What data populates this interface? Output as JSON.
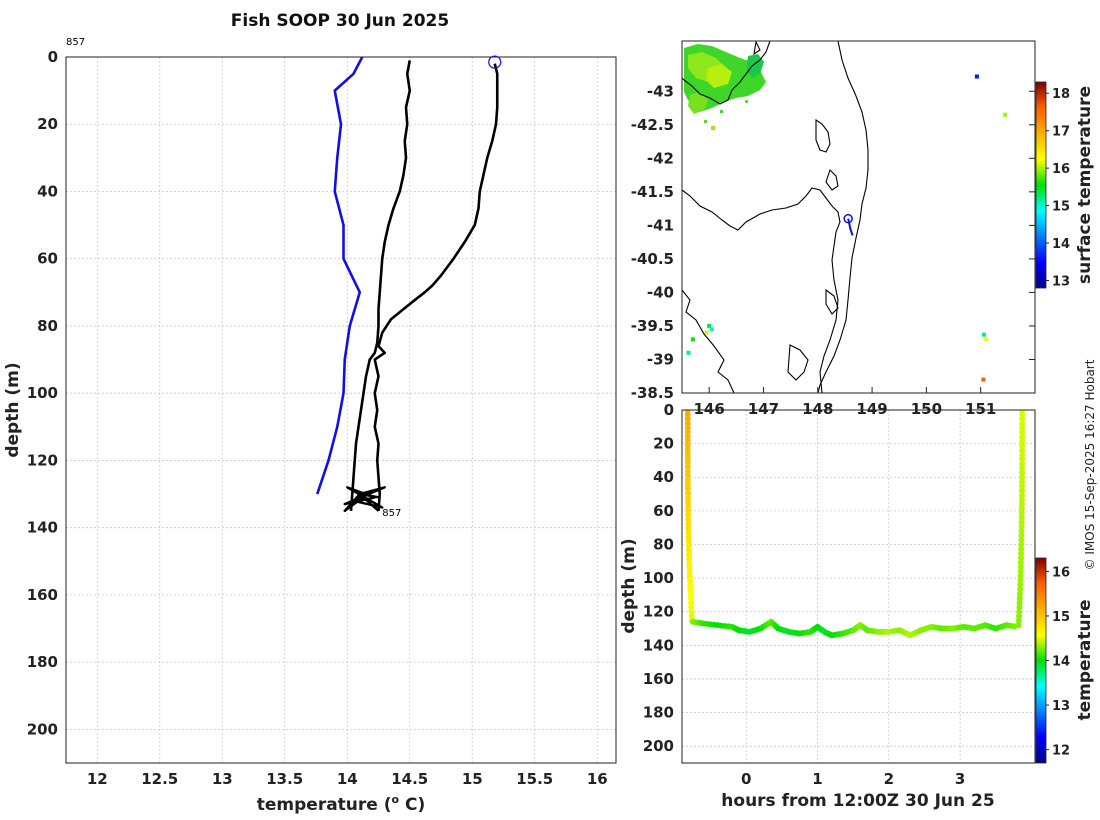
{
  "page": {
    "credit": "© IMOS 15-Sep-2025 16:27 Hobart"
  },
  "colors": {
    "climatology": "#1010e0",
    "profile": "#000000",
    "coast": "#000000",
    "marker": "#1010e0"
  },
  "chart_data": [
    {
      "id": "profile",
      "type": "line",
      "title": "Fish SOOP 30 Jun 2025",
      "xlabel": "temperature (",
      "xlabel_sup": "o",
      "xlabel_tail": " C)",
      "ylabel": "depth (m)",
      "xlim": [
        11.75,
        16.15
      ],
      "ylim": [
        0,
        210
      ],
      "xticks": [
        12,
        12.5,
        13,
        13.5,
        14,
        14.5,
        15,
        15.5,
        16
      ],
      "xtick_labels": [
        "12",
        "12.5",
        "13",
        "13.5",
        "14",
        "14.5",
        "15",
        "15.5",
        "16"
      ],
      "yticks": [
        0,
        20,
        40,
        60,
        80,
        100,
        120,
        140,
        160,
        180,
        200
      ],
      "ytick_labels": [
        "0",
        "20",
        "40",
        "60",
        "80",
        "100",
        "120",
        "140",
        "160",
        "180",
        "200"
      ],
      "annotation_top": "857",
      "annotation_bottom": "857",
      "start_marker": {
        "temperature": 15.18,
        "depth": 1.5
      },
      "series": [
        {
          "name": "climatology",
          "color": "#1010e0",
          "points": [
            [
              14.12,
              0
            ],
            [
              14.05,
              5
            ],
            [
              13.9,
              10
            ],
            [
              13.95,
              20
            ],
            [
              13.92,
              30
            ],
            [
              13.9,
              40
            ],
            [
              13.97,
              50
            ],
            [
              13.97,
              60
            ],
            [
              14.1,
              70
            ],
            [
              14.02,
              80
            ],
            [
              13.98,
              90
            ],
            [
              13.97,
              100
            ],
            [
              13.92,
              110
            ],
            [
              13.85,
              120
            ],
            [
              13.76,
              130
            ]
          ]
        },
        {
          "name": "profile-a",
          "color": "#000000",
          "points": [
            [
              15.18,
              2
            ],
            [
              15.2,
              5
            ],
            [
              15.2,
              10
            ],
            [
              15.2,
              15
            ],
            [
              15.19,
              20
            ],
            [
              15.16,
              25
            ],
            [
              15.12,
              30
            ],
            [
              15.09,
              35
            ],
            [
              15.06,
              40
            ],
            [
              15.05,
              45
            ],
            [
              15.02,
              50
            ],
            [
              14.94,
              55
            ],
            [
              14.85,
              60
            ],
            [
              14.75,
              65
            ],
            [
              14.68,
              68
            ],
            [
              14.62,
              70
            ],
            [
              14.55,
              72
            ],
            [
              14.45,
              75
            ],
            [
              14.35,
              78
            ],
            [
              14.28,
              82
            ],
            [
              14.25,
              86
            ],
            [
              14.3,
              88
            ],
            [
              14.22,
              90
            ],
            [
              14.25,
              95
            ],
            [
              14.22,
              100
            ],
            [
              14.24,
              105
            ],
            [
              14.22,
              110
            ],
            [
              14.25,
              115
            ],
            [
              14.24,
              120
            ],
            [
              14.25,
              125
            ],
            [
              14.26,
              130
            ],
            [
              14.25,
              135
            ]
          ]
        },
        {
          "name": "profile-b",
          "color": "#000000",
          "points": [
            [
              14.5,
              1
            ],
            [
              14.48,
              5
            ],
            [
              14.5,
              10
            ],
            [
              14.47,
              15
            ],
            [
              14.48,
              20
            ],
            [
              14.46,
              25
            ],
            [
              14.47,
              30
            ],
            [
              14.45,
              35
            ],
            [
              14.42,
              40
            ],
            [
              14.37,
              45
            ],
            [
              14.33,
              50
            ],
            [
              14.3,
              55
            ],
            [
              14.28,
              60
            ],
            [
              14.27,
              65
            ],
            [
              14.26,
              70
            ],
            [
              14.25,
              75
            ],
            [
              14.25,
              80
            ],
            [
              14.24,
              85
            ],
            [
              14.22,
              88
            ],
            [
              14.18,
              90
            ],
            [
              14.15,
              95
            ],
            [
              14.13,
              100
            ],
            [
              14.11,
              105
            ],
            [
              14.09,
              110
            ],
            [
              14.07,
              115
            ],
            [
              14.06,
              120
            ],
            [
              14.05,
              125
            ],
            [
              14.04,
              130
            ],
            [
              14.03,
              135
            ]
          ]
        }
      ],
      "scribble": [
        [
          14.25,
          135
        ],
        [
          14.1,
          130
        ],
        [
          14.3,
          128
        ],
        [
          13.98,
          133
        ],
        [
          14.22,
          131
        ],
        [
          14.0,
          128
        ],
        [
          14.28,
          134
        ],
        [
          14.05,
          132
        ],
        [
          14.2,
          129
        ],
        [
          13.98,
          135
        ],
        [
          14.1,
          130
        ],
        [
          14.26,
          131
        ]
      ]
    },
    {
      "id": "map",
      "type": "heatmap",
      "xlim": [
        145.5,
        152
      ],
      "ylim": [
        -43.75,
        -38.5
      ],
      "xtick_labels": [
        "146",
        "147",
        "148",
        "149",
        "150",
        "151"
      ],
      "xticks": [
        146,
        147,
        148,
        149,
        150,
        151
      ],
      "yticks": [
        -38.5,
        -39,
        -39.5,
        -40,
        -40.5,
        -41,
        -41.5,
        -42,
        -42.5,
        -43
      ],
      "ytick_labels": [
        "-38.5",
        "-39",
        "-39.5",
        "-40",
        "-40.5",
        "-41",
        "-41.5",
        "-42",
        "-42.5",
        "-43"
      ],
      "colorbar_label": "surface temperature",
      "clim": [
        12.8,
        18.3
      ],
      "colorbar_ticks": [
        13,
        14,
        15,
        16,
        17,
        18
      ],
      "colorbar_tick_labels": [
        "13",
        "14",
        "15",
        "16",
        "17",
        "18"
      ],
      "track": [
        [
          148.56,
          -41.1
        ],
        [
          148.6,
          -40.95
        ],
        [
          148.64,
          -40.85
        ]
      ],
      "track_marker": {
        "lon": 148.56,
        "lat": -41.1
      },
      "sst_pixels": [
        {
          "lon": 151.05,
          "lat": -38.7,
          "value": 17.6
        },
        {
          "lon": 151.1,
          "lat": -39.3,
          "value": 16.2
        },
        {
          "lon": 151.06,
          "lat": -39.37,
          "value": 15.2
        },
        {
          "lon": 151.45,
          "lat": -42.65,
          "value": 16.0
        },
        {
          "lon": 150.93,
          "lat": -43.22,
          "value": 13.6
        },
        {
          "lon": 145.95,
          "lat": -39.4,
          "value": 16.1
        },
        {
          "lon": 146.0,
          "lat": -39.5,
          "value": 15.4
        },
        {
          "lon": 146.05,
          "lat": -39.45,
          "value": 15.0
        },
        {
          "lon": 145.62,
          "lat": -39.1,
          "value": 15.2
        },
        {
          "lon": 145.7,
          "lat": -39.3,
          "value": 15.6
        }
      ]
    },
    {
      "id": "section",
      "type": "scatter",
      "xlabel": "hours from 12:00Z 30 Jun 25",
      "ylabel": "depth (m)",
      "xlim": [
        -0.9,
        4.05
      ],
      "ylim": [
        0,
        210
      ],
      "xticks": [
        0,
        1,
        2,
        3
      ],
      "xtick_labels": [
        "0",
        "1",
        "2",
        "3"
      ],
      "yticks": [
        0,
        20,
        40,
        60,
        80,
        100,
        120,
        140,
        160,
        180,
        200
      ],
      "ytick_labels": [
        "0",
        "20",
        "40",
        "60",
        "80",
        "100",
        "120",
        "140",
        "160",
        "180",
        "200"
      ],
      "colorbar_label": "temperature",
      "clim": [
        11.7,
        16.3
      ],
      "colorbar_ticks": [
        12,
        13,
        14,
        15,
        16
      ],
      "colorbar_tick_labels": [
        "12",
        "13",
        "14",
        "15",
        "16"
      ],
      "casts": [
        {
          "x0": -0.82,
          "x1": -0.76,
          "depth0": 0,
          "depth1": 125,
          "t0": 15.2,
          "t1": 14.5
        },
        {
          "x0": 3.87,
          "x1": 3.82,
          "depth0": 0,
          "depth1": 128,
          "t0": 14.5,
          "t1": 14.3
        }
      ],
      "bottom_track": [
        [
          -0.75,
          126
        ],
        [
          -0.6,
          127
        ],
        [
          -0.4,
          128
        ],
        [
          -0.2,
          129
        ],
        [
          -0.1,
          131
        ],
        [
          0.05,
          132
        ],
        [
          0.2,
          130
        ],
        [
          0.35,
          126
        ],
        [
          0.45,
          130
        ],
        [
          0.6,
          132
        ],
        [
          0.75,
          133
        ],
        [
          0.9,
          132
        ],
        [
          1.0,
          129
        ],
        [
          1.1,
          132
        ],
        [
          1.2,
          134
        ],
        [
          1.35,
          133
        ],
        [
          1.5,
          131
        ],
        [
          1.6,
          128
        ],
        [
          1.7,
          131
        ],
        [
          1.85,
          132
        ],
        [
          2.0,
          132
        ],
        [
          2.15,
          131
        ],
        [
          2.3,
          134
        ],
        [
          2.45,
          131
        ],
        [
          2.6,
          129
        ],
        [
          2.75,
          130
        ],
        [
          2.9,
          130
        ],
        [
          3.05,
          129
        ],
        [
          3.2,
          130
        ],
        [
          3.35,
          128
        ],
        [
          3.5,
          130
        ],
        [
          3.65,
          128
        ],
        [
          3.8,
          129
        ]
      ],
      "bottom_temps": [
        14.3,
        14.1,
        14.0,
        14.1,
        14.0,
        13.9,
        14.0,
        14.2,
        14.0,
        13.9,
        14.0,
        14.1,
        14.0,
        13.9,
        14.0,
        14.1,
        14.2,
        14.3,
        14.2,
        14.3,
        14.4,
        14.3,
        14.4,
        14.3,
        14.3,
        14.2,
        14.3,
        14.2,
        14.2,
        14.2,
        14.1,
        14.2,
        14.3
      ]
    }
  ]
}
